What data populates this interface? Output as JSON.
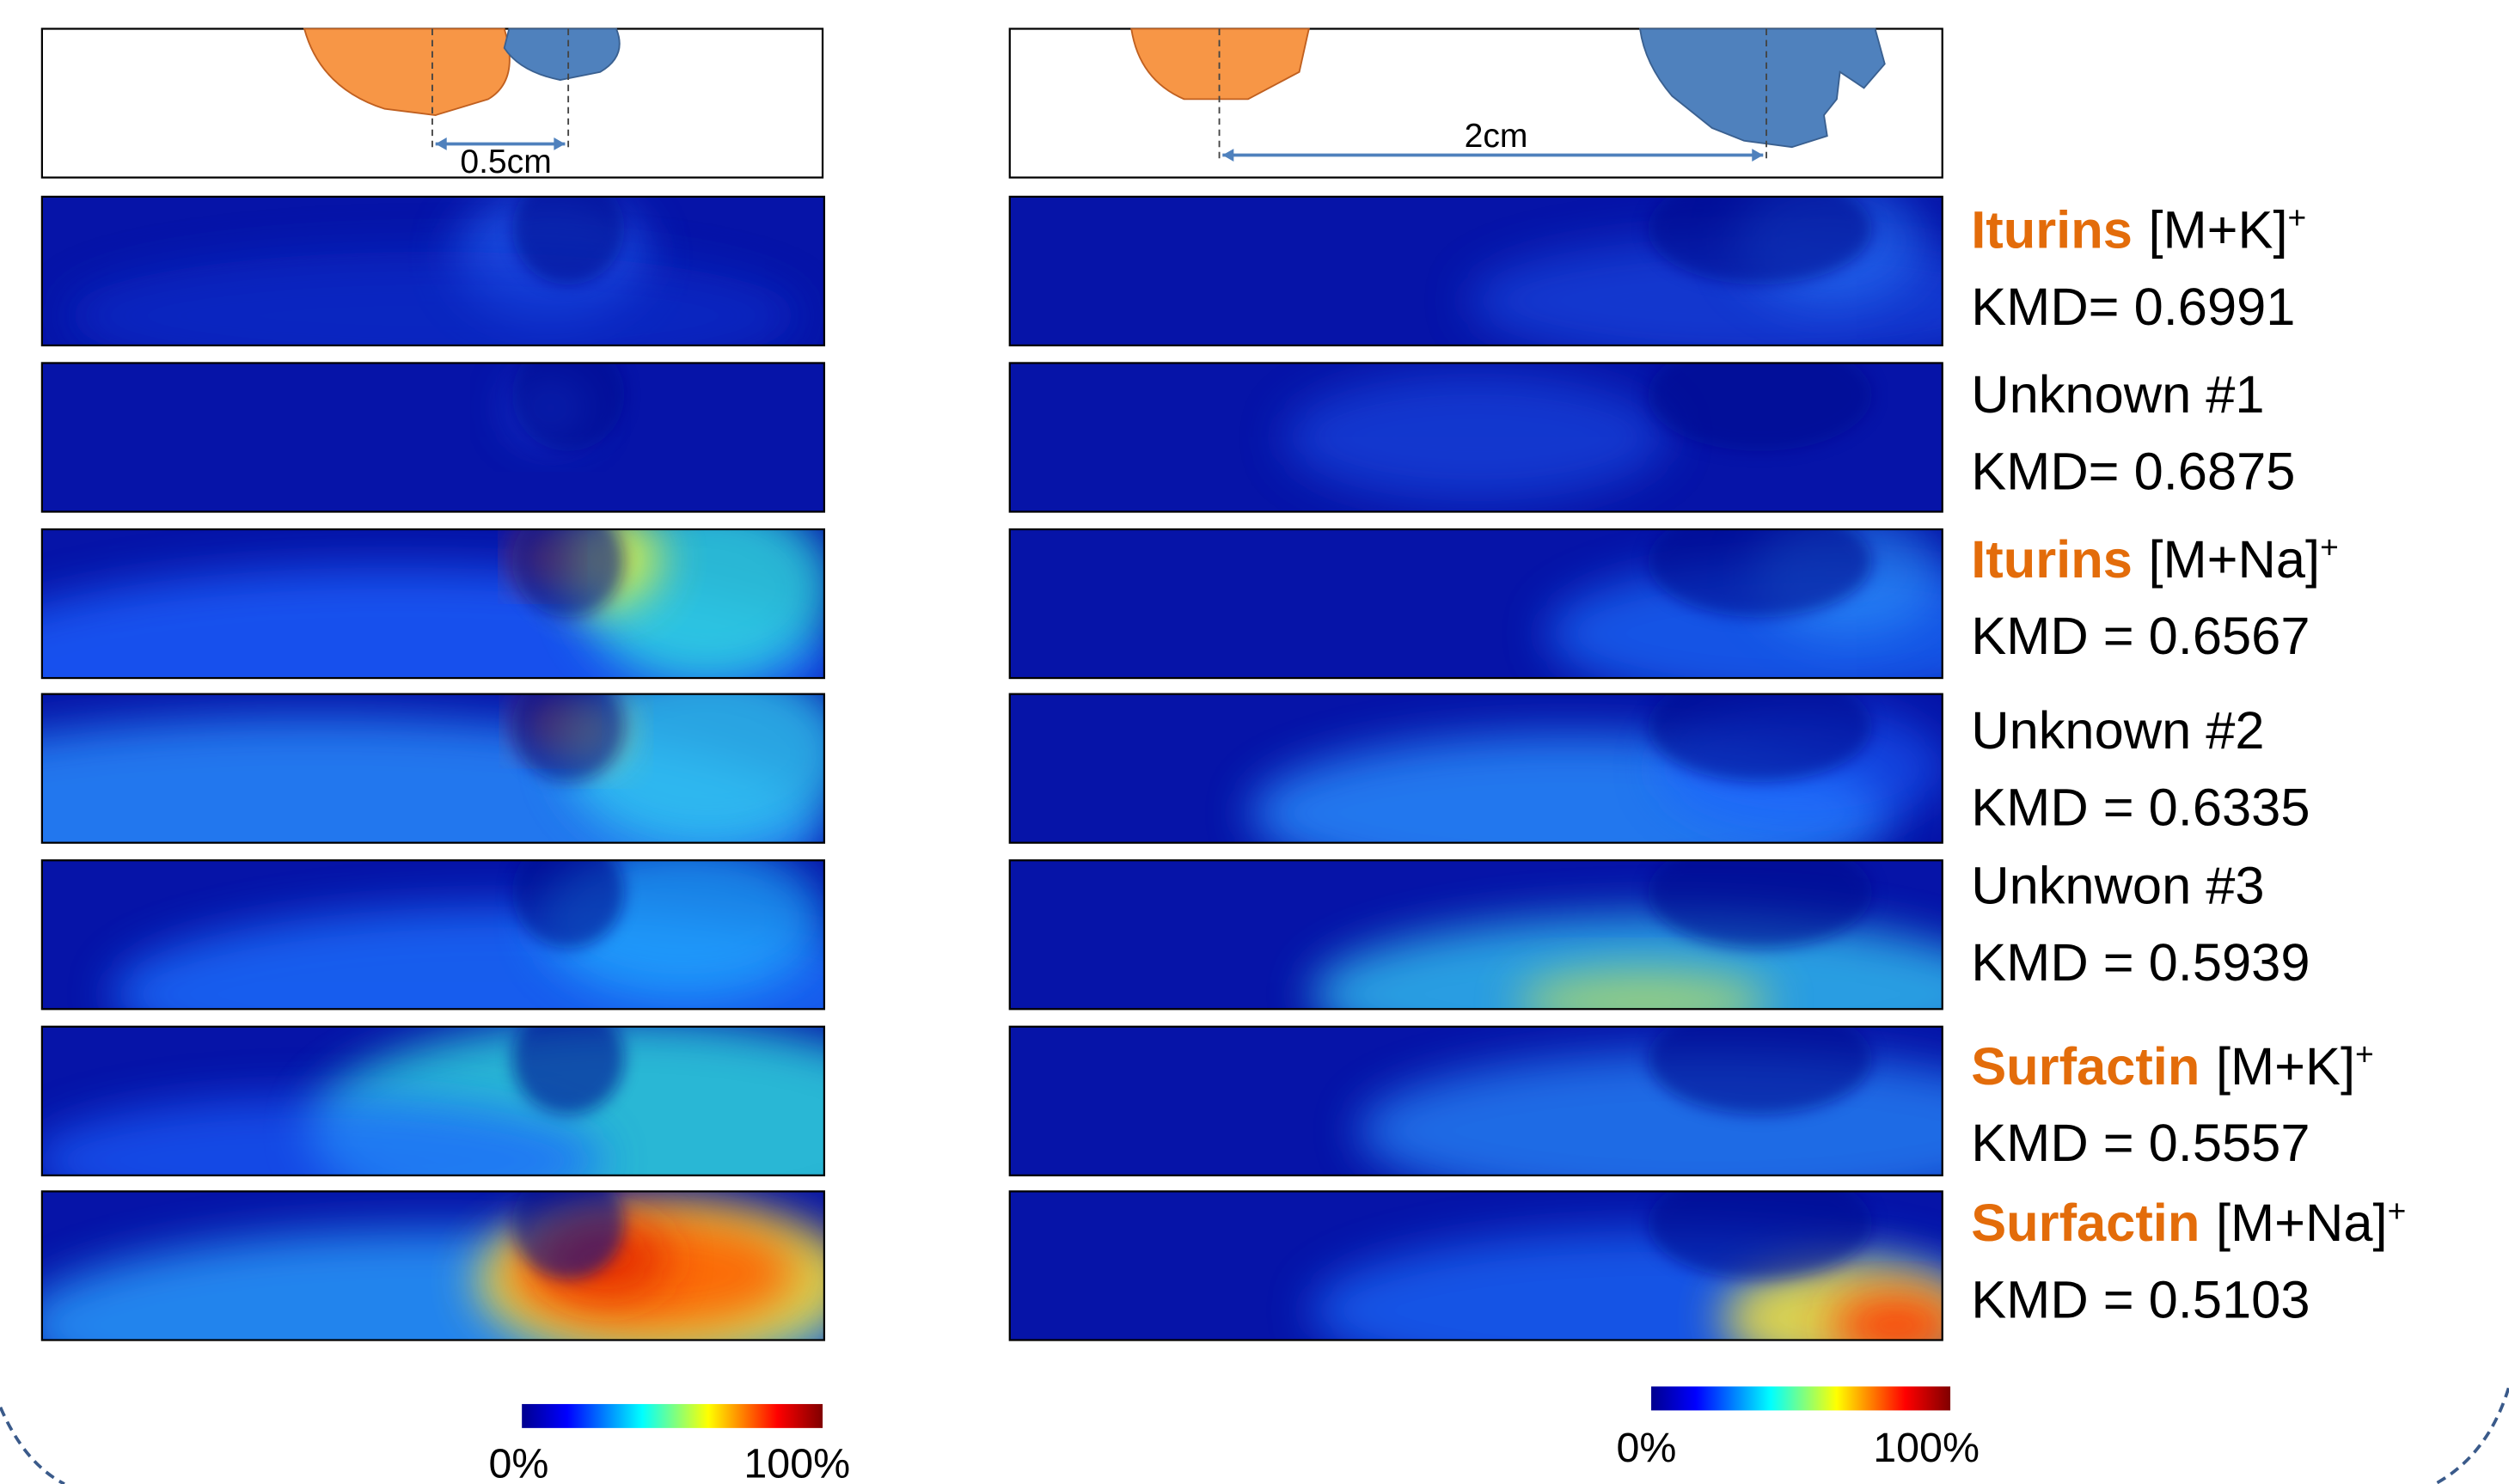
{
  "distances": [
    "0.5cm",
    "2cm"
  ],
  "compounds": [
    {
      "name": "Iturins",
      "adduct": "[M+K]",
      "charge": "+",
      "kmd": "KMD= 0.6991"
    },
    {
      "name": "Unknown #1",
      "kmd": "KMD= 0.6875"
    },
    {
      "name": "Iturins",
      "adduct": "[M+Na]",
      "charge": "+",
      "kmd": "KMD = 0.6567"
    },
    {
      "name": "Unknown #2",
      "kmd": "KMD = 0.6335"
    },
    {
      "name": "Unknwon #3",
      "kmd": "KMD = 0.5939"
    },
    {
      "name": "Surfactin",
      "adduct": "[M+K]",
      "charge": "+",
      "kmd": "KMD = 0.5557"
    },
    {
      "name": "Surfactin",
      "adduct": "[M+Na]",
      "charge": "+",
      "kmd": "KMD = 0.5103"
    }
  ],
  "colorbars": [
    {
      "min": "0%",
      "max": "100%"
    },
    {
      "min": "0%",
      "max": "100%"
    }
  ]
}
